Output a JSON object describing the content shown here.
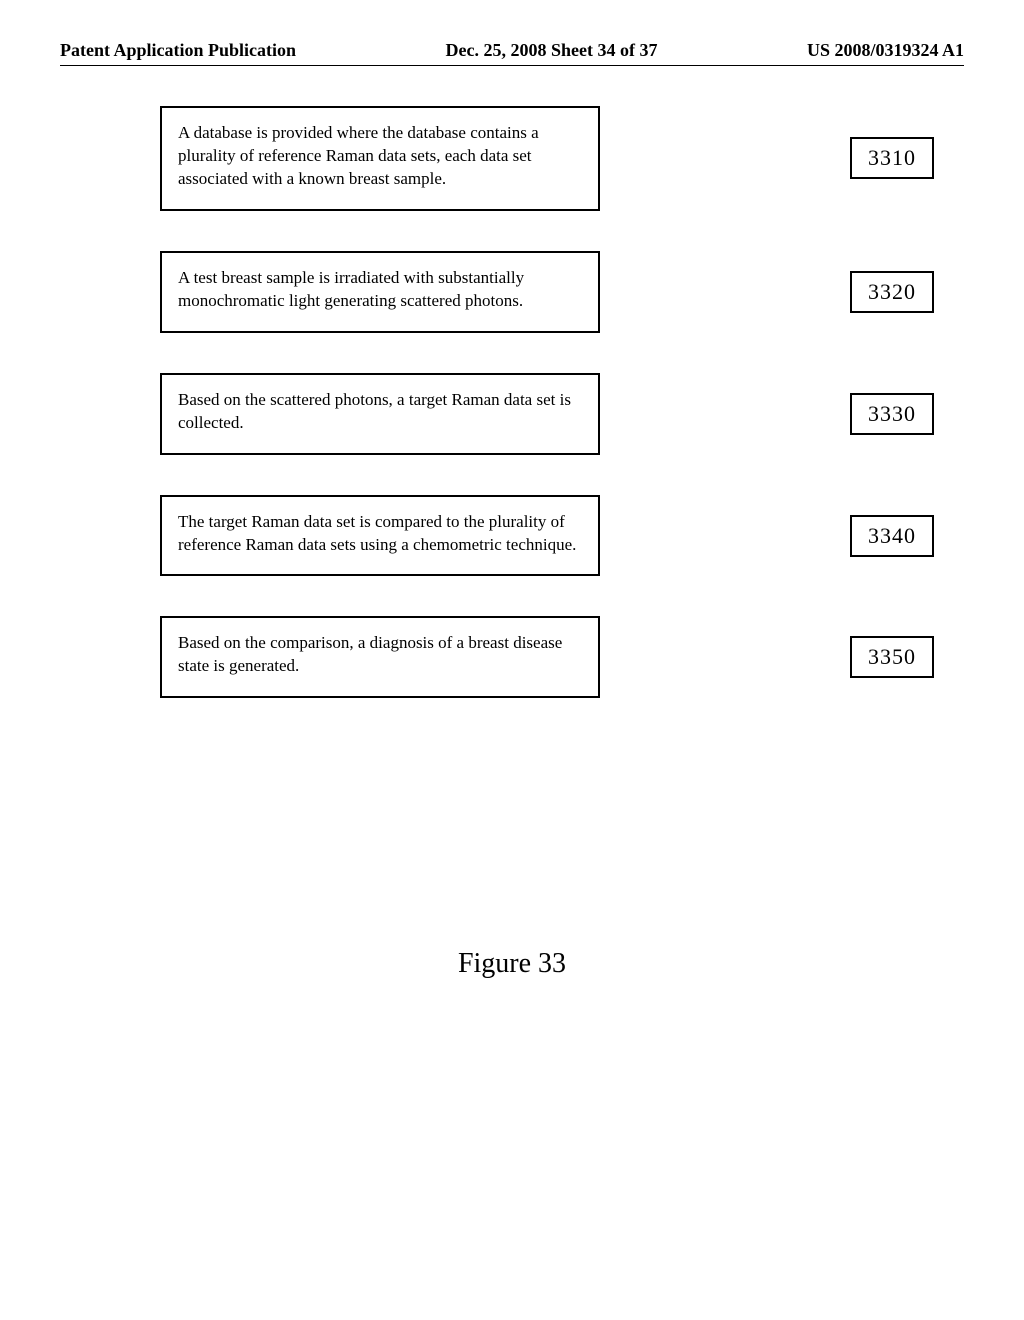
{
  "header": {
    "left": "Patent Application Publication",
    "center": "Dec. 25, 2008  Sheet 34 of 37",
    "right": "US 2008/0319324 A1"
  },
  "steps": [
    {
      "text": "A database is provided where the database contains a plurality of reference Raman data sets, each data set associated with a known breast sample.",
      "ref": "3310"
    },
    {
      "text": "A test breast sample is irradiated with substantially monochromatic light generating scattered photons.",
      "ref": "3320"
    },
    {
      "text": "Based on the scattered photons, a target Raman data set is collected.",
      "ref": "3330"
    },
    {
      "text": "The target Raman data set is compared to the plurality of reference Raman data sets using a chemometric technique.",
      "ref": "3340"
    },
    {
      "text": "Based on the comparison, a diagnosis of a breast disease state is generated.",
      "ref": "3350"
    }
  ],
  "figure_label": "Figure 33"
}
